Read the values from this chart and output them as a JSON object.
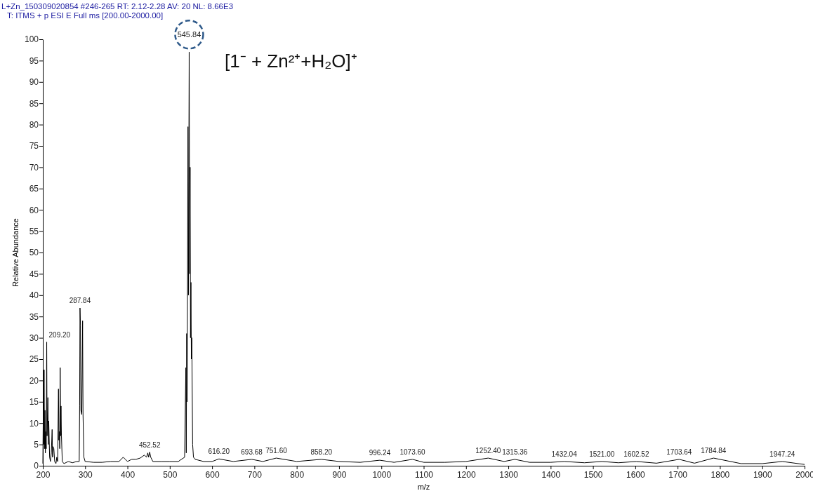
{
  "chart_data": {
    "type": "line",
    "title": "L+Zn_150309020854 #246-265  RT: 2.12-2.28  AV: 20  NL: 8.66E3",
    "subtitle": "T: ITMS + p ESI E Full ms [200.00-2000.00]",
    "xlabel": "m/z",
    "ylabel": "Relative Abundance",
    "xlim": [
      200,
      2000
    ],
    "xticks": [
      200,
      300,
      400,
      500,
      600,
      700,
      800,
      900,
      1000,
      1100,
      1200,
      1300,
      1400,
      1500,
      1600,
      1700,
      1800,
      1900,
      2000
    ],
    "ylim": [
      0,
      100
    ],
    "yticks": [
      0,
      5,
      10,
      15,
      20,
      25,
      30,
      35,
      40,
      45,
      50,
      55,
      60,
      65,
      70,
      75,
      80,
      85,
      90,
      95,
      100
    ],
    "grid": false,
    "series": [
      {
        "color": "#000000",
        "x": [
          200,
          201,
          202,
          203,
          204,
          205,
          206,
          207,
          208,
          209.2,
          210,
          212,
          213,
          214,
          216,
          218,
          220,
          222,
          223,
          224,
          226,
          228,
          231,
          233,
          235,
          237,
          238,
          239,
          240,
          241,
          242,
          243,
          244,
          246,
          250,
          260,
          270,
          280,
          286,
          287,
          287.84,
          289,
          290,
          292,
          294,
          295,
          297,
          300,
          320,
          340,
          360,
          380,
          390,
          395,
          400,
          410,
          420,
          430,
          440,
          445,
          448,
          450,
          452.52,
          455,
          460,
          480,
          500,
          520,
          535,
          538,
          539,
          540,
          541,
          543,
          544,
          545.84,
          547,
          548,
          549,
          550,
          551,
          552,
          554,
          556,
          560,
          580,
          600,
          616.2,
          650,
          693.68,
          720,
          751.6,
          800,
          858.2,
          900,
          950,
          996.24,
          1030,
          1073.6,
          1100,
          1150,
          1200,
          1252.4,
          1290,
          1315.36,
          1350,
          1400,
          1432.04,
          1480,
          1521,
          1560,
          1602.52,
          1650,
          1703.64,
          1740,
          1784.84,
          1850,
          1900,
          1947.24,
          2000
        ],
        "values": [
          0.5,
          12,
          5,
          22.5,
          4,
          13,
          3,
          8,
          4,
          29,
          7,
          16,
          5,
          10.5,
          2,
          1,
          3,
          8.5,
          2,
          4.5,
          4,
          1,
          0.5,
          2,
          1,
          18,
          6,
          8,
          4,
          23,
          7,
          14,
          7,
          1,
          0.5,
          1,
          0.7,
          1,
          1,
          14,
          37,
          33,
          13,
          12,
          34,
          12,
          2,
          1,
          0.8,
          0.8,
          1,
          1,
          2,
          1.5,
          1,
          1.5,
          1.5,
          1.8,
          2.5,
          2,
          3,
          2,
          3.2,
          2,
          1,
          1,
          1,
          1,
          2,
          23,
          3,
          31,
          15,
          79.5,
          40,
          97,
          45,
          70,
          30,
          43,
          25,
          30,
          5,
          2,
          1.5,
          1,
          1,
          1.6,
          1,
          1.5,
          1,
          1.8,
          1,
          1.5,
          1,
          0.8,
          1.3,
          0.8,
          1.5,
          0.8,
          0.8,
          1,
          1.8,
          1,
          1.5,
          0.8,
          0.8,
          1,
          0.7,
          1,
          0.7,
          1,
          0.6,
          1.5,
          0.6,
          1.8,
          0.5,
          0.5,
          1,
          0.3
        ]
      }
    ],
    "annotations": [
      "[1⁻ + Zn²⁺+H₂O]⁺",
      {
        "text": "209.20",
        "x": 209.2,
        "y": 29
      },
      {
        "text": "287.84",
        "x": 287.84,
        "y": 37
      },
      {
        "text": "452.52",
        "x": 452.52,
        "y": 3.2
      },
      {
        "text": "545.84",
        "x": 545.84,
        "y": 97
      },
      {
        "text": "616.20",
        "x": 616.2,
        "y": 1.6
      },
      {
        "text": "693.68",
        "x": 693.68,
        "y": 1.5
      },
      {
        "text": "751.60",
        "x": 751.6,
        "y": 1.8
      },
      {
        "text": "858.20",
        "x": 858.2,
        "y": 1.5
      },
      {
        "text": "996.24",
        "x": 996.24,
        "y": 1.3
      },
      {
        "text": "1073.60",
        "x": 1073.6,
        "y": 1.5
      },
      {
        "text": "1252.40",
        "x": 1252.4,
        "y": 1.8
      },
      {
        "text": "1315.36",
        "x": 1315.36,
        "y": 1.5
      },
      {
        "text": "1432.04",
        "x": 1432.04,
        "y": 1
      },
      {
        "text": "1521.00",
        "x": 1521,
        "y": 1
      },
      {
        "text": "1602.52",
        "x": 1602.52,
        "y": 1
      },
      {
        "text": "1703.64",
        "x": 1703.64,
        "y": 1.5
      },
      {
        "text": "1784.84",
        "x": 1784.84,
        "y": 1.8
      },
      {
        "text": "1947.24",
        "x": 1947.24,
        "y": 1
      }
    ]
  }
}
